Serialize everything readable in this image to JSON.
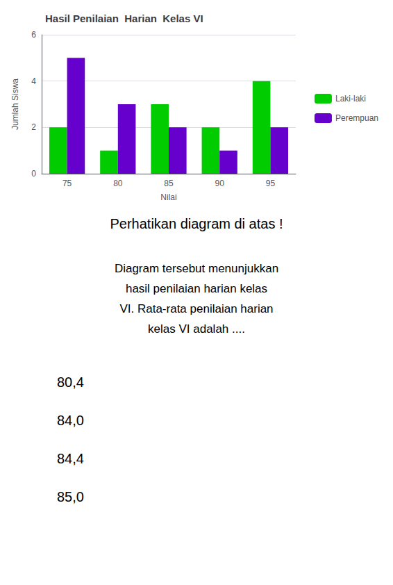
{
  "chart_data": {
    "type": "bar",
    "title": "Hasil Penilaian  Harian  Kelas VI",
    "x_label": "Nilai",
    "y_label": "Jumlah Siswa",
    "categories": [
      75,
      80,
      85,
      90,
      95
    ],
    "series": [
      {
        "name": "Laki-laki",
        "color": "#00cc00",
        "values": [
          2,
          1,
          3,
          2,
          4
        ]
      },
      {
        "name": "Perempuan",
        "color": "#6600cc",
        "values": [
          5,
          3,
          2,
          1,
          2
        ]
      }
    ],
    "ylim": [
      0,
      6
    ],
    "yticks": [
      0,
      2,
      4,
      6
    ],
    "grid": true,
    "legend": "right",
    "annotations": [
      "Perhatikan diagram di atas !",
      "Diagram tersebut menunjukkan\nhasil penilaian harian kelas\nVI. Rata-rata penilaian harian\nkelas VI adalah ....",
      "80,4",
      "84,0",
      "84,4",
      "85,0"
    ]
  }
}
